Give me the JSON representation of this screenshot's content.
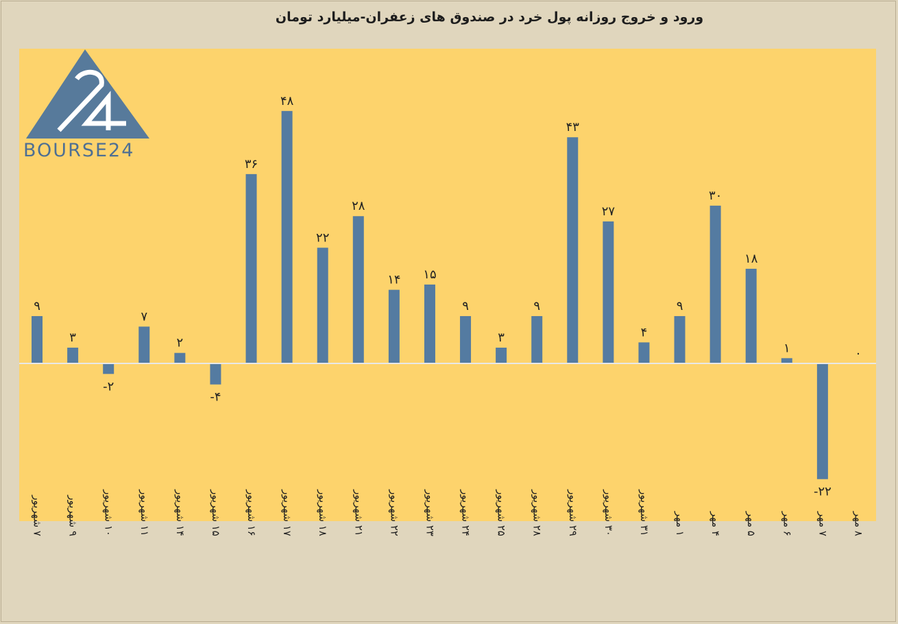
{
  "chart_data": {
    "type": "bar",
    "title": "ورود و خروج روزانه پول خرد در صندوق های زعفران-میلیارد تومان",
    "categories": [
      "۷ شهریور",
      "۹ شهریور",
      "۱۰ شهریور",
      "۱۱ شهریور",
      "۱۴ شهریور",
      "۱۵ شهریور",
      "۱۶ شهریور",
      "۱۷ شهریور",
      "۱۸ شهریور",
      "۲۱ شهریور",
      "۲۲ شهریور",
      "۲۳ شهریور",
      "۲۴ شهریور",
      "۲۵ شهریور",
      "۲۸ شهریور",
      "۲۹ شهریور",
      "۳۰ شهریور",
      "۳۱ شهریور",
      "۱ مهر",
      "۴ مهر",
      "۵ مهر",
      "۶ مهر",
      "۷ مهر",
      "۸ مهر"
    ],
    "values": [
      9,
      3,
      -2,
      7,
      2,
      -4,
      36,
      48,
      22,
      28,
      14,
      15,
      9,
      3,
      9,
      43,
      27,
      4,
      9,
      30,
      18,
      1,
      -22,
      0
    ],
    "value_labels": [
      "۹",
      "۳",
      "-۲",
      "۷",
      "۲",
      "-۴",
      "۳۶",
      "۴۸",
      "۲۲",
      "۲۸",
      "۱۴",
      "۱۵",
      "۹",
      "۳",
      "۹",
      "۴۳",
      "۲۷",
      "۴",
      "۹",
      "۳۰",
      "۱۸",
      "۱",
      "-۲۲",
      "۰"
    ],
    "ylim": [
      -24,
      50
    ],
    "grid": false,
    "legend": "none",
    "bar_color": "#547ba1",
    "plot_background": "#fdd36c"
  },
  "logo": {
    "text": "BOURSE24",
    "color": "#4e6f93"
  }
}
